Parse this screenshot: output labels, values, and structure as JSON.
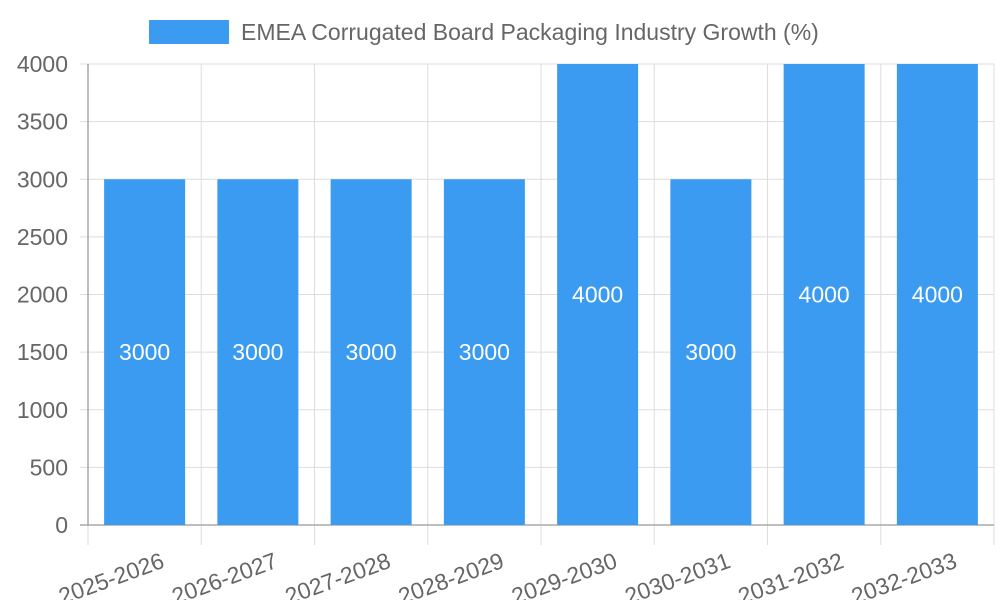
{
  "chart_data": {
    "type": "bar",
    "title": "",
    "xlabel": "",
    "ylabel": "",
    "categories": [
      "2025-2026",
      "2026-2027",
      "2027-2028",
      "2028-2029",
      "2029-2030",
      "2030-2031",
      "2031-2032",
      "2032-2033"
    ],
    "series": [
      {
        "name": "EMEA Corrugated Board Packaging Industry Growth (%)",
        "values": [
          3000,
          3000,
          3000,
          3000,
          4000,
          3000,
          4000,
          4000
        ]
      }
    ],
    "ylim": [
      0,
      4000
    ],
    "yticks": [
      0,
      500,
      1000,
      1500,
      2000,
      2500,
      3000,
      3500,
      4000
    ],
    "grid": true,
    "legend_position": "top-center",
    "data_labels": true
  },
  "colors": {
    "bar": "#3a9bf0",
    "grid": "#dddddd",
    "axis": "#a8a8a8",
    "tick_text": "#666666",
    "legend_text": "#666666",
    "label_text": "#ffffff"
  }
}
